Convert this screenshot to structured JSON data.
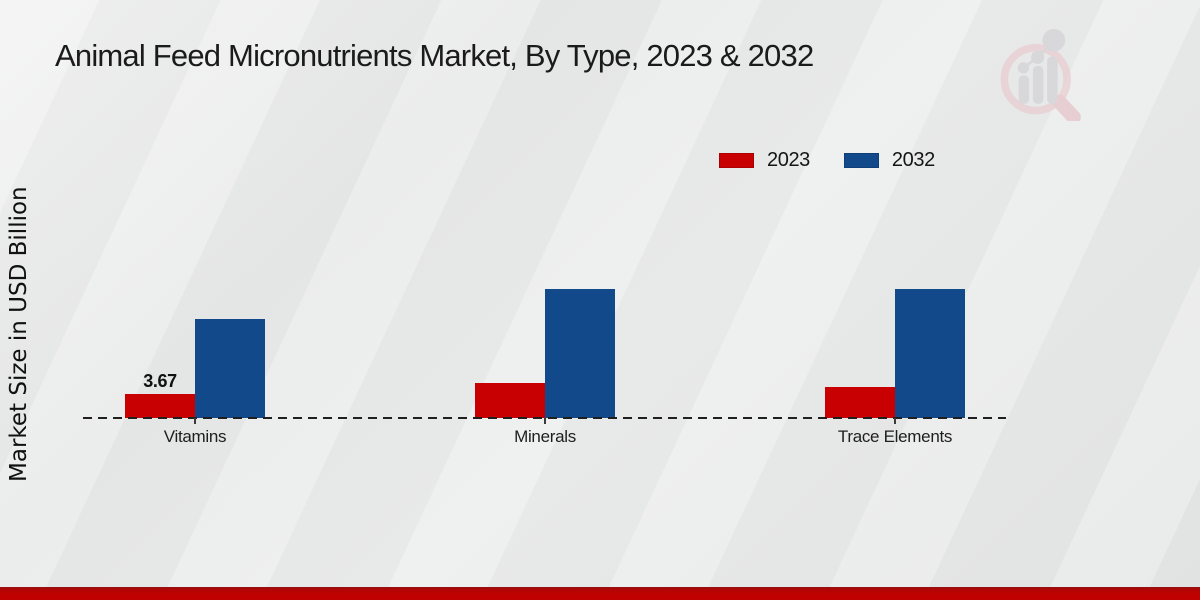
{
  "title": "Animal Feed Micronutrients Market, By Type, 2023 & 2032",
  "ylabel": "Market Size in USD Billion",
  "legend": [
    {
      "label": "2023",
      "color": "#c90001"
    },
    {
      "label": "2032",
      "color": "#11498b"
    }
  ],
  "footer_color": "#c00101",
  "watermark_icon": "market-research-future-logo",
  "chart_data": {
    "type": "bar",
    "title": "Animal Feed Micronutrients Market, By Type, 2023 & 2032",
    "xlabel": "",
    "ylabel": "Market Size in USD Billion",
    "categories": [
      "Vitamins",
      "Minerals",
      "Trace Elements"
    ],
    "series": [
      {
        "name": "2023",
        "color": "#c90001",
        "values": [
          3.67,
          5.3,
          4.7
        ]
      },
      {
        "name": "2032",
        "color": "#11498b",
        "values": [
          15.1,
          19.7,
          19.7
        ]
      }
    ],
    "data_labels": [
      {
        "category": "Vitamins",
        "series": "2023",
        "text": "3.67"
      }
    ],
    "ylim": [
      0,
      21
    ],
    "grid": false,
    "axis_line_style": "dashed",
    "legend_position": "top-right"
  }
}
